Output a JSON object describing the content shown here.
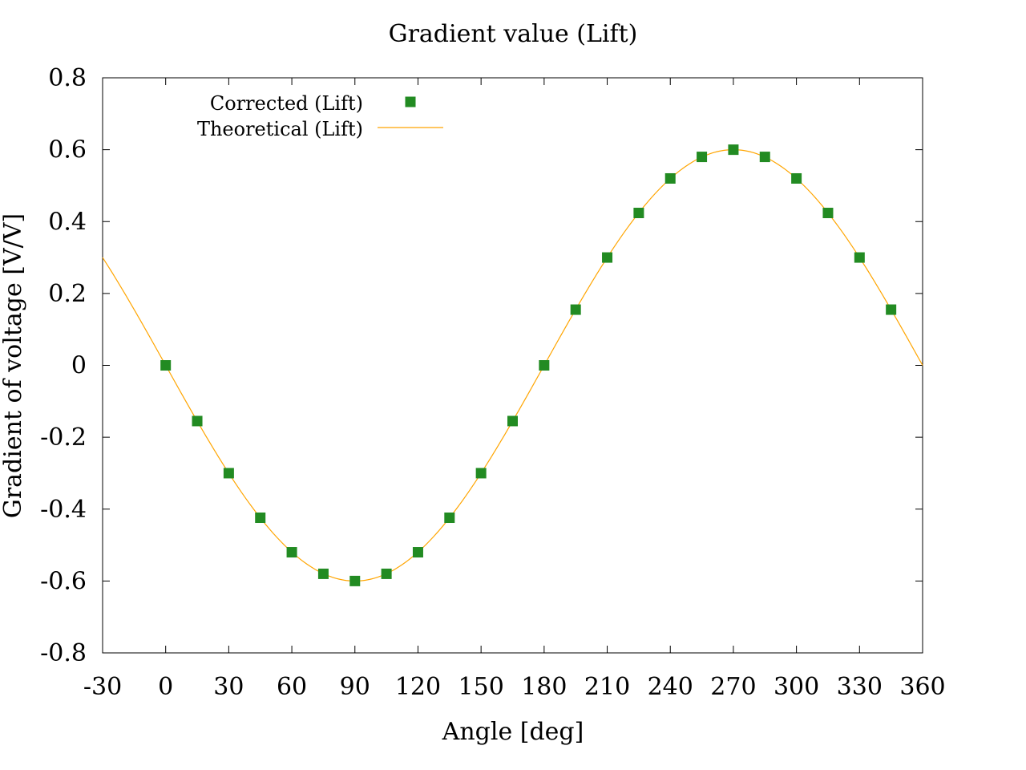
{
  "chart_data": {
    "type": "scatter",
    "title": "Gradient value (Lift)",
    "xlabel": "Angle [deg]",
    "ylabel": "Gradient of voltage [V/V]",
    "xlim": [
      -30,
      360
    ],
    "ylim": [
      -0.8,
      0.8
    ],
    "xticks": [
      "-30",
      "0",
      "30",
      "60",
      "90",
      "120",
      "150",
      "180",
      "210",
      "240",
      "270",
      "300",
      "330",
      "360"
    ],
    "yticks": [
      "0.8",
      "0.6",
      "0.4",
      "0.2",
      "0",
      "-0.2",
      "-0.4",
      "-0.6",
      "-0.8"
    ],
    "grid": false,
    "legend_position": "top-left",
    "series": [
      {
        "name": "Corrected (Lift)",
        "style": "markers",
        "marker": "square",
        "color": "#228B22",
        "x": [
          0,
          15,
          30,
          45,
          60,
          75,
          90,
          105,
          120,
          135,
          150,
          165,
          180,
          195,
          210,
          225,
          240,
          255,
          270,
          285,
          300,
          315,
          330,
          345
        ],
        "y": [
          0,
          -0.155,
          -0.3,
          -0.424,
          -0.52,
          -0.58,
          -0.6,
          -0.58,
          -0.52,
          -0.424,
          -0.3,
          -0.155,
          0,
          0.155,
          0.3,
          0.424,
          0.52,
          0.58,
          0.6,
          0.58,
          0.52,
          0.424,
          0.3,
          0.155
        ]
      },
      {
        "name": "Theoretical (Lift)",
        "style": "line",
        "color": "#FFA500",
        "function": "y = -0.6 sin(x)",
        "amplitude": -0.6
      }
    ]
  }
}
